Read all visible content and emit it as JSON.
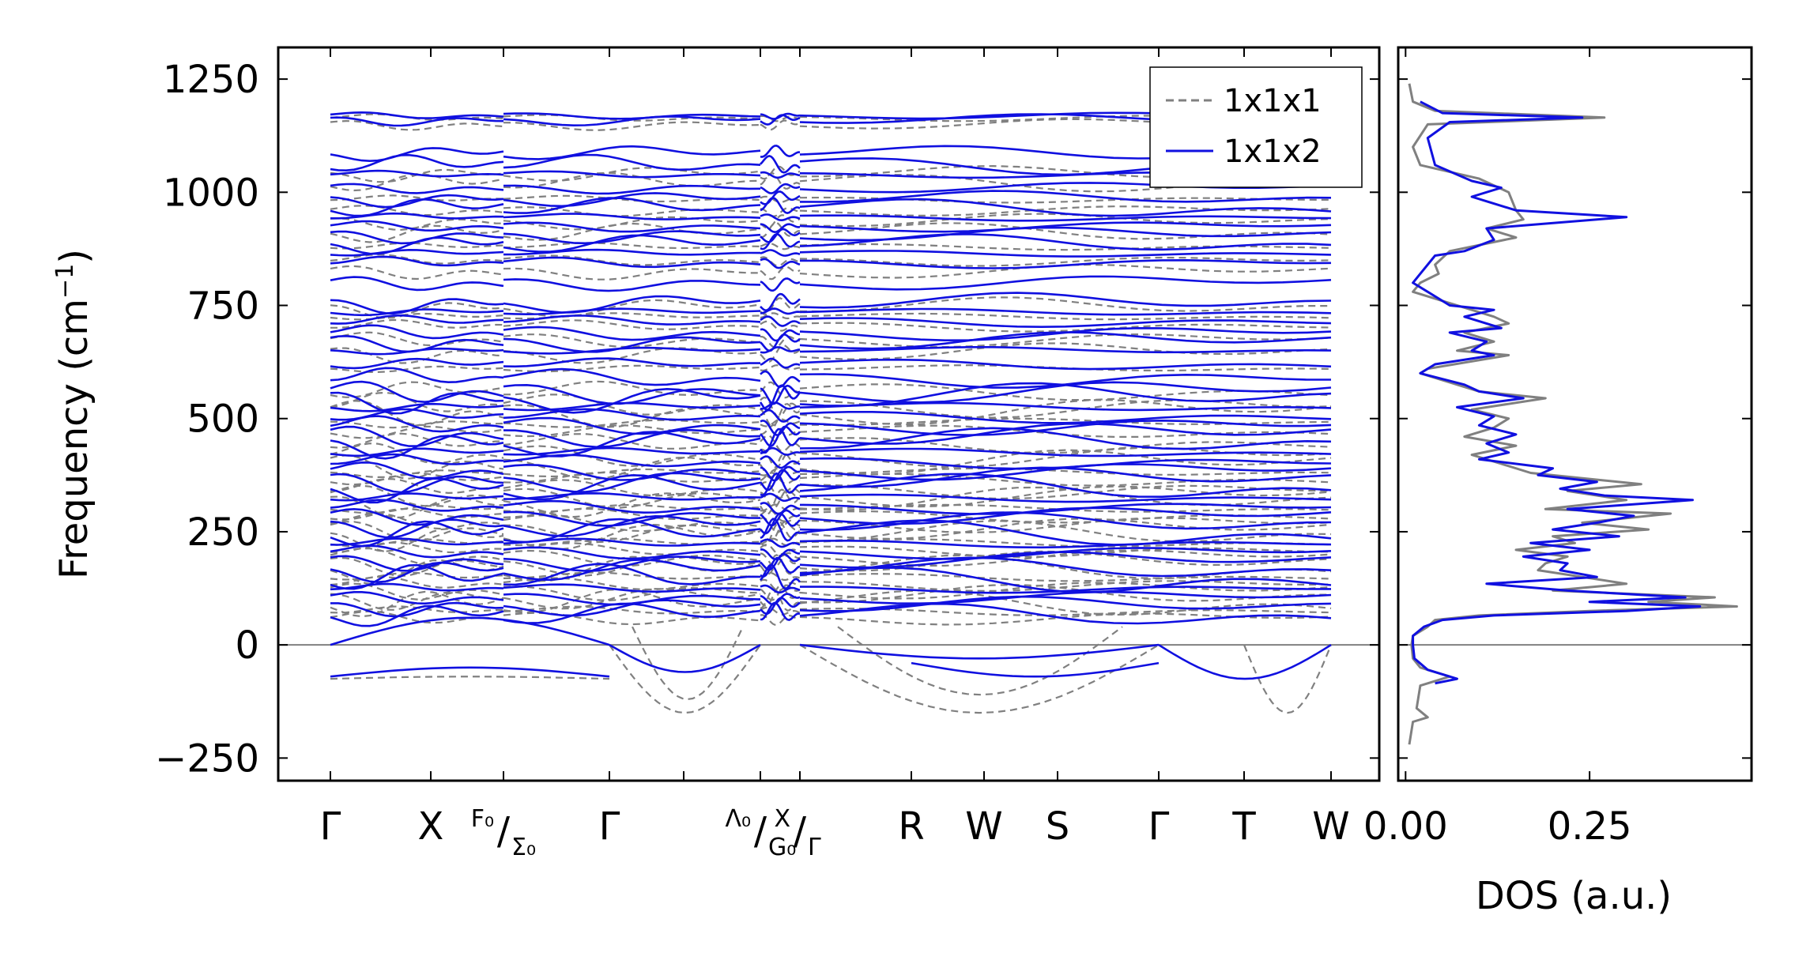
{
  "chart_data": [
    {
      "type": "line",
      "name": "phonon band structure",
      "ylabel": "Frequency (cm⁻¹)",
      "ylabel_base": "Frequency (cm",
      "ylabel_exp": "−1",
      "ylabel_close": ")",
      "ylim": [
        -300,
        1320
      ],
      "yticks": [
        -250,
        0,
        250,
        500,
        750,
        1000,
        1250
      ],
      "ytick_labels": [
        "−250",
        "0",
        "250",
        "500",
        "750",
        "1000",
        "1250"
      ],
      "zero_line": true,
      "path_segments": [
        {
          "start": "Γ",
          "end": "F₀",
          "labels": [
            "Γ",
            "X",
            "F₀"
          ]
        },
        {
          "start": "Σ₀",
          "end": "Λ₀",
          "labels": [
            "Σ₀",
            "Γ",
            "Λ₀"
          ]
        },
        {
          "start": "G₀",
          "end": "X",
          "labels": [
            "G₀",
            "X"
          ]
        },
        {
          "start": "Γ",
          "end": "W",
          "labels": [
            "Γ",
            "R",
            "W",
            "S",
            "Γ",
            "T",
            "W"
          ]
        }
      ],
      "xtick_labels": [
        {
          "kind": "plain",
          "text": "Γ"
        },
        {
          "kind": "plain",
          "text": "X"
        },
        {
          "kind": "split",
          "top": "F₀",
          "bottom": "Σ₀"
        },
        {
          "kind": "plain",
          "text": "Γ"
        },
        {
          "kind": "plain",
          "text": ""
        },
        {
          "kind": "split",
          "top": "Λ₀",
          "bottom": "G₀"
        },
        {
          "kind": "split",
          "top": "X",
          "bottom": "Γ"
        },
        {
          "kind": "plain",
          "text": "R"
        },
        {
          "kind": "plain",
          "text": "W"
        },
        {
          "kind": "plain",
          "text": "S"
        },
        {
          "kind": "plain",
          "text": "Γ"
        },
        {
          "kind": "plain",
          "text": "T"
        },
        {
          "kind": "plain",
          "text": "W"
        }
      ],
      "series": [
        {
          "name": "1x1x1",
          "color": "#808080",
          "style": "dashed",
          "representative_frequencies": [
            1165,
            1150,
            1040,
            1020,
            985,
            960,
            935,
            910,
            880,
            850,
            825,
            745,
            725,
            705,
            675,
            645,
            610,
            560,
            530,
            515,
            490,
            470,
            445,
            420,
            400,
            380,
            365,
            345,
            330,
            315,
            300,
            285,
            270,
            255,
            240,
            225,
            210,
            195,
            180,
            165,
            150,
            135,
            120,
            105,
            90,
            75,
            60
          ],
          "soft_modes": "dips to about −150 along Γ–Λ₀ and along Γ–R–W–S, about −75 near Γ"
        },
        {
          "name": "1x1x2",
          "color": "#1010e0",
          "style": "solid",
          "representative_frequencies": [
            1170,
            1160,
            1085,
            1060,
            1040,
            1010,
            985,
            965,
            945,
            925,
            905,
            885,
            865,
            845,
            800,
            755,
            735,
            715,
            690,
            670,
            650,
            620,
            590,
            560,
            545,
            525,
            505,
            485,
            465,
            445,
            425,
            405,
            385,
            365,
            345,
            325,
            305,
            285,
            265,
            245,
            225,
            205,
            185,
            165,
            145,
            125,
            105,
            85,
            65
          ],
          "soft_modes": "flat branch near −70 along Γ–X–F₀, around −50 to −75 elsewhere"
        }
      ],
      "legend": {
        "placement": "top-right",
        "entries": [
          {
            "label": "1x1x1",
            "color": "#808080",
            "style": "dashed"
          },
          {
            "label": "1x1x2",
            "color": "#1010e0",
            "style": "solid"
          }
        ]
      }
    },
    {
      "type": "line",
      "name": "phonon density of states",
      "xlabel": "DOS (a.u.)",
      "xlim": [
        -0.01,
        0.47
      ],
      "xticks": [
        0.0,
        0.25
      ],
      "xtick_labels": [
        "0.00",
        "0.25"
      ],
      "ylim": [
        -300,
        1320
      ],
      "series": [
        {
          "name": "1x1x1",
          "color": "#808080",
          "points": [
            [
              0.005,
              1240
            ],
            [
              0.01,
              1200
            ],
            [
              0.04,
              1180
            ],
            [
              0.27,
              1165
            ],
            [
              0.03,
              1150
            ],
            [
              0.01,
              1100
            ],
            [
              0.02,
              1060
            ],
            [
              0.1,
              1030
            ],
            [
              0.14,
              1000
            ],
            [
              0.15,
              960
            ],
            [
              0.16,
              940
            ],
            [
              0.11,
              920
            ],
            [
              0.15,
              900
            ],
            [
              0.06,
              870
            ],
            [
              0.04,
              840
            ],
            [
              0.045,
              820
            ],
            [
              0.02,
              800
            ],
            [
              0.01,
              780
            ],
            [
              0.05,
              760
            ],
            [
              0.09,
              740
            ],
            [
              0.12,
              725
            ],
            [
              0.14,
              710
            ],
            [
              0.08,
              690
            ],
            [
              0.12,
              670
            ],
            [
              0.07,
              650
            ],
            [
              0.14,
              640
            ],
            [
              0.03,
              610
            ],
            [
              0.02,
              600
            ],
            [
              0.06,
              580
            ],
            [
              0.1,
              560
            ],
            [
              0.19,
              545
            ],
            [
              0.09,
              520
            ],
            [
              0.14,
              500
            ],
            [
              0.12,
              480
            ],
            [
              0.08,
              460
            ],
            [
              0.15,
              440
            ],
            [
              0.09,
              420
            ],
            [
              0.13,
              400
            ],
            [
              0.17,
              380
            ],
            [
              0.32,
              355
            ],
            [
              0.22,
              340
            ],
            [
              0.3,
              320
            ],
            [
              0.19,
              300
            ],
            [
              0.36,
              290
            ],
            [
              0.24,
              270
            ],
            [
              0.33,
              255
            ],
            [
              0.2,
              240
            ],
            [
              0.23,
              225
            ],
            [
              0.15,
              210
            ],
            [
              0.22,
              195
            ],
            [
              0.19,
              180
            ],
            [
              0.18,
              165
            ],
            [
              0.24,
              150
            ],
            [
              0.3,
              135
            ],
            [
              0.2,
              120
            ],
            [
              0.42,
              105
            ],
            [
              0.33,
              95
            ],
            [
              0.45,
              85
            ],
            [
              0.25,
              75
            ],
            [
              0.1,
              65
            ],
            [
              0.04,
              55
            ],
            [
              0.03,
              40
            ],
            [
              0.01,
              20
            ],
            [
              0.008,
              0
            ],
            [
              0.01,
              -30
            ],
            [
              0.02,
              -50
            ],
            [
              0.06,
              -70
            ],
            [
              0.02,
              -90
            ],
            [
              0.015,
              -140
            ],
            [
              0.03,
              -160
            ],
            [
              0.01,
              -170
            ],
            [
              0.005,
              -220
            ]
          ]
        },
        {
          "name": "1x1x2",
          "color": "#1010e0",
          "points": [
            [
              0.02,
              1200
            ],
            [
              0.05,
              1175
            ],
            [
              0.24,
              1165
            ],
            [
              0.06,
              1155
            ],
            [
              0.03,
              1120
            ],
            [
              0.04,
              1060
            ],
            [
              0.09,
              1025
            ],
            [
              0.13,
              1010
            ],
            [
              0.09,
              990
            ],
            [
              0.15,
              960
            ],
            [
              0.3,
              945
            ],
            [
              0.11,
              920
            ],
            [
              0.12,
              895
            ],
            [
              0.08,
              870
            ],
            [
              0.04,
              860
            ],
            [
              0.02,
              820
            ],
            [
              0.01,
              800
            ],
            [
              0.03,
              780
            ],
            [
              0.06,
              750
            ],
            [
              0.12,
              740
            ],
            [
              0.08,
              725
            ],
            [
              0.13,
              700
            ],
            [
              0.06,
              690
            ],
            [
              0.11,
              670
            ],
            [
              0.09,
              650
            ],
            [
              0.12,
              640
            ],
            [
              0.04,
              620
            ],
            [
              0.02,
              600
            ],
            [
              0.08,
              575
            ],
            [
              0.1,
              560
            ],
            [
              0.16,
              545
            ],
            [
              0.07,
              525
            ],
            [
              0.12,
              505
            ],
            [
              0.1,
              485
            ],
            [
              0.15,
              465
            ],
            [
              0.11,
              445
            ],
            [
              0.14,
              425
            ],
            [
              0.1,
              410
            ],
            [
              0.2,
              390
            ],
            [
              0.18,
              375
            ],
            [
              0.26,
              360
            ],
            [
              0.21,
              345
            ],
            [
              0.27,
              330
            ],
            [
              0.39,
              320
            ],
            [
              0.22,
              300
            ],
            [
              0.31,
              285
            ],
            [
              0.26,
              270
            ],
            [
              0.2,
              255
            ],
            [
              0.29,
              240
            ],
            [
              0.17,
              225
            ],
            [
              0.25,
              210
            ],
            [
              0.16,
              195
            ],
            [
              0.22,
              180
            ],
            [
              0.21,
              165
            ],
            [
              0.26,
              150
            ],
            [
              0.11,
              135
            ],
            [
              0.22,
              120
            ],
            [
              0.38,
              105
            ],
            [
              0.25,
              95
            ],
            [
              0.4,
              85
            ],
            [
              0.3,
              75
            ],
            [
              0.12,
              65
            ],
            [
              0.05,
              55
            ],
            [
              0.025,
              40
            ],
            [
              0.01,
              20
            ],
            [
              0.01,
              0
            ],
            [
              0.012,
              -30
            ],
            [
              0.03,
              -55
            ],
            [
              0.07,
              -75
            ],
            [
              0.04,
              -85
            ]
          ]
        }
      ]
    }
  ]
}
